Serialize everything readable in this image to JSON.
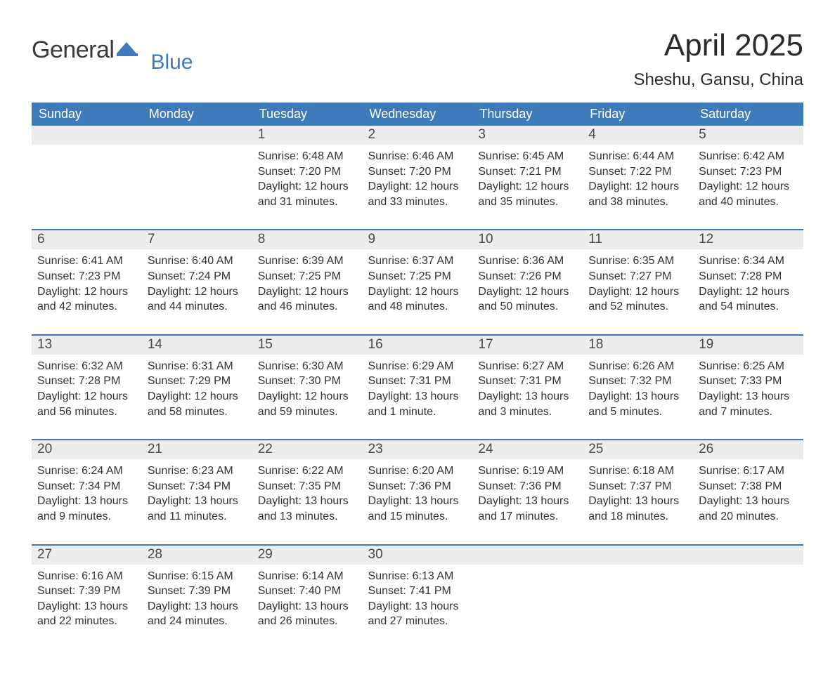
{
  "logo": {
    "word1": "General",
    "word2": "Blue"
  },
  "title": "April 2025",
  "subtitle": "Sheshu, Gansu, China",
  "colors": {
    "header_bg": "#3d7bba",
    "header_text": "#ffffff",
    "row_divider": "#3d7bba",
    "daynum_bg": "#ededed",
    "body_text": "#333333",
    "logo_grey": "#3a3a3a",
    "logo_blue": "#3d7bba",
    "page_bg": "#ffffff"
  },
  "typography": {
    "title_fontsize": 44,
    "subtitle_fontsize": 24,
    "header_fontsize": 18,
    "daynum_fontsize": 19,
    "body_fontsize": 16,
    "font_family": "Arial"
  },
  "weekdays": [
    "Sunday",
    "Monday",
    "Tuesday",
    "Wednesday",
    "Thursday",
    "Friday",
    "Saturday"
  ],
  "weeks": [
    [
      {
        "day": "",
        "sunrise": "",
        "sunset": "",
        "daylight": ""
      },
      {
        "day": "",
        "sunrise": "",
        "sunset": "",
        "daylight": ""
      },
      {
        "day": "1",
        "sunrise": "Sunrise: 6:48 AM",
        "sunset": "Sunset: 7:20 PM",
        "daylight": "Daylight: 12 hours and 31 minutes."
      },
      {
        "day": "2",
        "sunrise": "Sunrise: 6:46 AM",
        "sunset": "Sunset: 7:20 PM",
        "daylight": "Daylight: 12 hours and 33 minutes."
      },
      {
        "day": "3",
        "sunrise": "Sunrise: 6:45 AM",
        "sunset": "Sunset: 7:21 PM",
        "daylight": "Daylight: 12 hours and 35 minutes."
      },
      {
        "day": "4",
        "sunrise": "Sunrise: 6:44 AM",
        "sunset": "Sunset: 7:22 PM",
        "daylight": "Daylight: 12 hours and 38 minutes."
      },
      {
        "day": "5",
        "sunrise": "Sunrise: 6:42 AM",
        "sunset": "Sunset: 7:23 PM",
        "daylight": "Daylight: 12 hours and 40 minutes."
      }
    ],
    [
      {
        "day": "6",
        "sunrise": "Sunrise: 6:41 AM",
        "sunset": "Sunset: 7:23 PM",
        "daylight": "Daylight: 12 hours and 42 minutes."
      },
      {
        "day": "7",
        "sunrise": "Sunrise: 6:40 AM",
        "sunset": "Sunset: 7:24 PM",
        "daylight": "Daylight: 12 hours and 44 minutes."
      },
      {
        "day": "8",
        "sunrise": "Sunrise: 6:39 AM",
        "sunset": "Sunset: 7:25 PM",
        "daylight": "Daylight: 12 hours and 46 minutes."
      },
      {
        "day": "9",
        "sunrise": "Sunrise: 6:37 AM",
        "sunset": "Sunset: 7:25 PM",
        "daylight": "Daylight: 12 hours and 48 minutes."
      },
      {
        "day": "10",
        "sunrise": "Sunrise: 6:36 AM",
        "sunset": "Sunset: 7:26 PM",
        "daylight": "Daylight: 12 hours and 50 minutes."
      },
      {
        "day": "11",
        "sunrise": "Sunrise: 6:35 AM",
        "sunset": "Sunset: 7:27 PM",
        "daylight": "Daylight: 12 hours and 52 minutes."
      },
      {
        "day": "12",
        "sunrise": "Sunrise: 6:34 AM",
        "sunset": "Sunset: 7:28 PM",
        "daylight": "Daylight: 12 hours and 54 minutes."
      }
    ],
    [
      {
        "day": "13",
        "sunrise": "Sunrise: 6:32 AM",
        "sunset": "Sunset: 7:28 PM",
        "daylight": "Daylight: 12 hours and 56 minutes."
      },
      {
        "day": "14",
        "sunrise": "Sunrise: 6:31 AM",
        "sunset": "Sunset: 7:29 PM",
        "daylight": "Daylight: 12 hours and 58 minutes."
      },
      {
        "day": "15",
        "sunrise": "Sunrise: 6:30 AM",
        "sunset": "Sunset: 7:30 PM",
        "daylight": "Daylight: 12 hours and 59 minutes."
      },
      {
        "day": "16",
        "sunrise": "Sunrise: 6:29 AM",
        "sunset": "Sunset: 7:31 PM",
        "daylight": "Daylight: 13 hours and 1 minute."
      },
      {
        "day": "17",
        "sunrise": "Sunrise: 6:27 AM",
        "sunset": "Sunset: 7:31 PM",
        "daylight": "Daylight: 13 hours and 3 minutes."
      },
      {
        "day": "18",
        "sunrise": "Sunrise: 6:26 AM",
        "sunset": "Sunset: 7:32 PM",
        "daylight": "Daylight: 13 hours and 5 minutes."
      },
      {
        "day": "19",
        "sunrise": "Sunrise: 6:25 AM",
        "sunset": "Sunset: 7:33 PM",
        "daylight": "Daylight: 13 hours and 7 minutes."
      }
    ],
    [
      {
        "day": "20",
        "sunrise": "Sunrise: 6:24 AM",
        "sunset": "Sunset: 7:34 PM",
        "daylight": "Daylight: 13 hours and 9 minutes."
      },
      {
        "day": "21",
        "sunrise": "Sunrise: 6:23 AM",
        "sunset": "Sunset: 7:34 PM",
        "daylight": "Daylight: 13 hours and 11 minutes."
      },
      {
        "day": "22",
        "sunrise": "Sunrise: 6:22 AM",
        "sunset": "Sunset: 7:35 PM",
        "daylight": "Daylight: 13 hours and 13 minutes."
      },
      {
        "day": "23",
        "sunrise": "Sunrise: 6:20 AM",
        "sunset": "Sunset: 7:36 PM",
        "daylight": "Daylight: 13 hours and 15 minutes."
      },
      {
        "day": "24",
        "sunrise": "Sunrise: 6:19 AM",
        "sunset": "Sunset: 7:36 PM",
        "daylight": "Daylight: 13 hours and 17 minutes."
      },
      {
        "day": "25",
        "sunrise": "Sunrise: 6:18 AM",
        "sunset": "Sunset: 7:37 PM",
        "daylight": "Daylight: 13 hours and 18 minutes."
      },
      {
        "day": "26",
        "sunrise": "Sunrise: 6:17 AM",
        "sunset": "Sunset: 7:38 PM",
        "daylight": "Daylight: 13 hours and 20 minutes."
      }
    ],
    [
      {
        "day": "27",
        "sunrise": "Sunrise: 6:16 AM",
        "sunset": "Sunset: 7:39 PM",
        "daylight": "Daylight: 13 hours and 22 minutes."
      },
      {
        "day": "28",
        "sunrise": "Sunrise: 6:15 AM",
        "sunset": "Sunset: 7:39 PM",
        "daylight": "Daylight: 13 hours and 24 minutes."
      },
      {
        "day": "29",
        "sunrise": "Sunrise: 6:14 AM",
        "sunset": "Sunset: 7:40 PM",
        "daylight": "Daylight: 13 hours and 26 minutes."
      },
      {
        "day": "30",
        "sunrise": "Sunrise: 6:13 AM",
        "sunset": "Sunset: 7:41 PM",
        "daylight": "Daylight: 13 hours and 27 minutes."
      },
      {
        "day": "",
        "sunrise": "",
        "sunset": "",
        "daylight": ""
      },
      {
        "day": "",
        "sunrise": "",
        "sunset": "",
        "daylight": ""
      },
      {
        "day": "",
        "sunrise": "",
        "sunset": "",
        "daylight": ""
      }
    ]
  ]
}
